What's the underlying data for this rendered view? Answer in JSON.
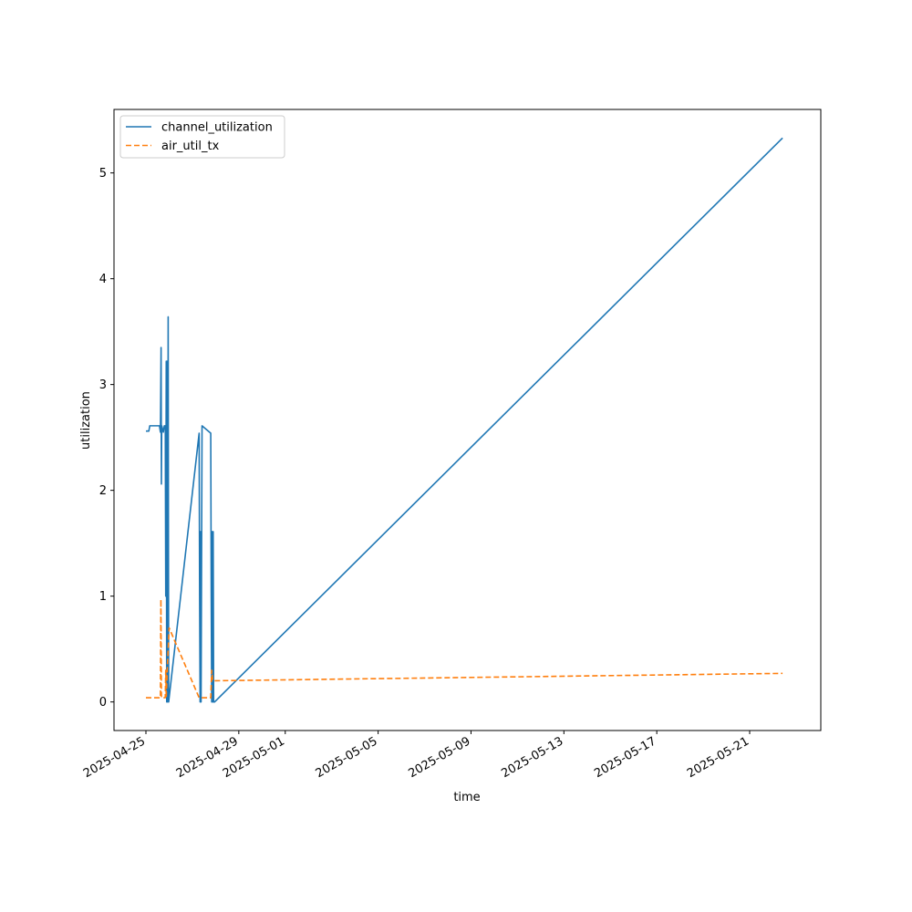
{
  "chart_data": {
    "type": "line",
    "title": "",
    "xlabel": "time",
    "ylabel": "utilization",
    "x_type": "datetime",
    "xlim": [
      "2024-04-24T15:00",
      "2025-05-24T03:00"
    ],
    "ylim": [
      -0.27,
      5.6
    ],
    "x_ticks": [
      "2025-04-25",
      "2025-04-29",
      "2025-05-01",
      "2025-05-05",
      "2025-05-09",
      "2025-05-13",
      "2025-05-17",
      "2025-05-21"
    ],
    "y_ticks": [
      0,
      1,
      2,
      3,
      4,
      5
    ],
    "grid": false,
    "legend": "upper left",
    "series": [
      {
        "name": "channel_utilization",
        "color": "#1f77b4",
        "style": "solid",
        "points": [
          [
            "2025-04-25T00:00",
            2.56
          ],
          [
            "2025-04-25T03:00",
            2.56
          ],
          [
            "2025-04-25T04:00",
            2.61
          ],
          [
            "2025-04-25T14:00",
            2.61
          ],
          [
            "2025-04-25T15:00",
            2.55
          ],
          [
            "2025-04-25T15:40",
            3.35
          ],
          [
            "2025-04-25T16:00",
            2.06
          ],
          [
            "2025-04-25T16:20",
            2.61
          ],
          [
            "2025-04-25T18:00",
            2.55
          ],
          [
            "2025-04-25T19:00",
            2.61
          ],
          [
            "2025-04-25T20:00",
            2.61
          ],
          [
            "2025-04-25T20:30",
            1.0
          ],
          [
            "2025-04-25T21:00",
            3.22
          ],
          [
            "2025-04-25T21:30",
            0.0
          ],
          [
            "2025-04-25T22:00",
            3.22
          ],
          [
            "2025-04-25T22:30",
            0.0
          ],
          [
            "2025-04-25T23:00",
            3.64
          ],
          [
            "2025-04-25T23:30",
            0.0
          ],
          [
            "2025-04-27T07:00",
            2.54
          ],
          [
            "2025-04-27T07:30",
            1.0
          ],
          [
            "2025-04-27T08:00",
            0.0
          ],
          [
            "2025-04-27T08:30",
            1.61
          ],
          [
            "2025-04-27T09:00",
            0.0
          ],
          [
            "2025-04-27T10:00",
            2.61
          ],
          [
            "2025-04-27T19:00",
            2.54
          ],
          [
            "2025-04-27T19:30",
            1.0
          ],
          [
            "2025-04-27T20:00",
            0.0
          ],
          [
            "2025-04-27T20:30",
            1.61
          ],
          [
            "2025-04-27T21:00",
            0.0
          ],
          [
            "2025-04-27T21:30",
            1.61
          ],
          [
            "2025-04-27T22:00",
            0.0
          ],
          [
            "2025-04-27T23:00",
            0.0
          ],
          [
            "2025-05-22T10:00",
            5.33
          ]
        ]
      },
      {
        "name": "air_util_tx",
        "color": "#ff7f0e",
        "style": "dashed",
        "points": [
          [
            "2025-04-25T00:00",
            0.04
          ],
          [
            "2025-04-25T15:00",
            0.04
          ],
          [
            "2025-04-25T15:30",
            0.97
          ],
          [
            "2025-04-25T16:00",
            0.04
          ],
          [
            "2025-04-25T20:00",
            0.04
          ],
          [
            "2025-04-25T20:30",
            0.3
          ],
          [
            "2025-04-25T21:00",
            0.04
          ],
          [
            "2025-04-25T22:00",
            0.3
          ],
          [
            "2025-04-26T00:00",
            0.7
          ],
          [
            "2025-04-27T07:00",
            0.04
          ],
          [
            "2025-04-27T19:00",
            0.04
          ],
          [
            "2025-04-27T20:00",
            0.3
          ],
          [
            "2025-04-27T21:00",
            0.2
          ],
          [
            "2025-05-22T10:00",
            0.27
          ]
        ]
      }
    ]
  }
}
